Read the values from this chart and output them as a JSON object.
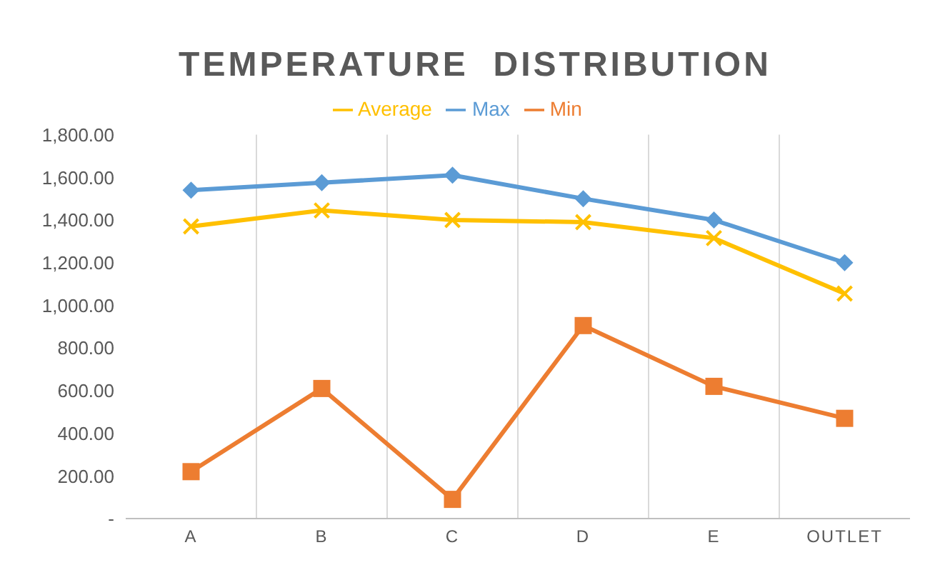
{
  "chart_data": {
    "type": "line",
    "title": "TEMPERATURE  DISTRIBUTION",
    "categories": [
      "A",
      "B",
      "C",
      "D",
      "E",
      "OUTLET"
    ],
    "series": [
      {
        "name": "Max",
        "color": "#5b9bd5",
        "marker": "diamond",
        "values": [
          1540,
          1575,
          1610,
          1500,
          1400,
          1200
        ]
      },
      {
        "name": "Min",
        "color": "#ed7d31",
        "marker": "square",
        "values": [
          220,
          610,
          90,
          905,
          620,
          470
        ]
      },
      {
        "name": "Average",
        "color": "#ffc000",
        "marker": "cross",
        "values": [
          1370,
          1445,
          1400,
          1390,
          1315,
          1055
        ]
      }
    ],
    "ylim": [
      0,
      1800
    ],
    "yticks": [
      {
        "value": 0,
        "label": "-"
      },
      {
        "value": 200,
        "label": "200.00"
      },
      {
        "value": 400,
        "label": "400.00"
      },
      {
        "value": 600,
        "label": "600.00"
      },
      {
        "value": 800,
        "label": "800.00"
      },
      {
        "value": 1000,
        "label": "1,000.00"
      },
      {
        "value": 1200,
        "label": "1,200.00"
      },
      {
        "value": 1400,
        "label": "1,400.00"
      },
      {
        "value": 1600,
        "label": "1,600.00"
      },
      {
        "value": 1800,
        "label": "1,800.00"
      }
    ],
    "grid": "x",
    "legend": "top",
    "line_style": "solid"
  }
}
